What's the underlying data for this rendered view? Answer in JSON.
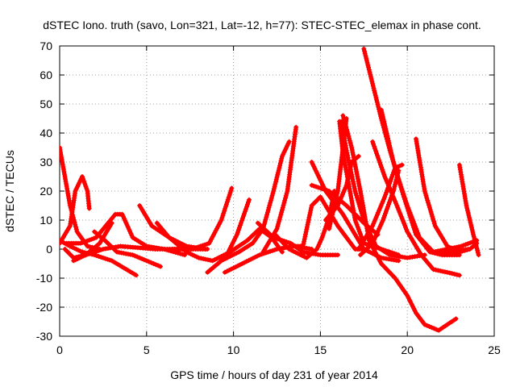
{
  "chart_data": {
    "type": "scatter",
    "title": "dSTEC Iono. truth (savo, Lon=321, Lat=-12, h=77): STEC-STEC_elemax in phase cont.",
    "xlabel": "GPS time / hours of day 231 of year 2014",
    "ylabel": "dSTEC  / TECUs",
    "xlim": [
      0,
      25
    ],
    "ylim": [
      -30,
      70
    ],
    "xticks": [
      0,
      5,
      10,
      15,
      20,
      25
    ],
    "yticks": [
      -30,
      -20,
      -10,
      0,
      10,
      20,
      30,
      40,
      50,
      60,
      70
    ],
    "grid": true,
    "marker": "+",
    "color": "#ff0000",
    "series": [
      {
        "points": [
          [
            0.0,
            35
          ],
          [
            0.3,
            25
          ],
          [
            0.6,
            15
          ],
          [
            1.0,
            6
          ],
          [
            1.6,
            1
          ],
          [
            2.3,
            0
          ]
        ]
      },
      {
        "points": [
          [
            0.0,
            3
          ],
          [
            0.6,
            1
          ],
          [
            1.3,
            -1
          ],
          [
            2.0,
            -2
          ],
          [
            3.0,
            -4
          ],
          [
            4.4,
            -9
          ]
        ]
      },
      {
        "points": [
          [
            0.0,
            2
          ],
          [
            0.6,
            8
          ],
          [
            0.9,
            20
          ],
          [
            1.3,
            25
          ],
          [
            1.6,
            20
          ],
          [
            1.7,
            14
          ]
        ]
      },
      {
        "points": [
          [
            0.3,
            0
          ],
          [
            0.8,
            -3
          ],
          [
            1.5,
            -2
          ],
          [
            2.5,
            0
          ],
          [
            3.5,
            1
          ],
          [
            5.5,
            0
          ],
          [
            8.5,
            0
          ]
        ]
      },
      {
        "points": [
          [
            0.4,
            2
          ],
          [
            1.2,
            2
          ],
          [
            2.1,
            4
          ],
          [
            3.2,
            12
          ],
          [
            3.6,
            12
          ],
          [
            4.2,
            4
          ],
          [
            5.0,
            1
          ],
          [
            6.0,
            0
          ],
          [
            7.2,
            -2
          ]
        ]
      },
      {
        "points": [
          [
            0.8,
            -4
          ],
          [
            1.5,
            -2
          ],
          [
            2.3,
            2
          ],
          [
            2.8,
            7
          ],
          [
            3.0,
            9
          ]
        ]
      },
      {
        "points": [
          [
            2.0,
            6
          ],
          [
            2.6,
            3
          ],
          [
            3.3,
            -1
          ],
          [
            4.2,
            -2
          ],
          [
            5.8,
            -6
          ]
        ]
      },
      {
        "points": [
          [
            4.6,
            15
          ],
          [
            5.3,
            8
          ],
          [
            6.3,
            4
          ],
          [
            7.3,
            1
          ],
          [
            8.4,
            0
          ]
        ]
      },
      {
        "points": [
          [
            5.6,
            9
          ],
          [
            6.3,
            4
          ],
          [
            7.3,
            -1
          ],
          [
            8.0,
            -3
          ],
          [
            8.8,
            -4
          ],
          [
            9.8,
            -1
          ],
          [
            10.8,
            3
          ],
          [
            11.5,
            7
          ],
          [
            12.2,
            4
          ],
          [
            12.8,
            -1
          ]
        ]
      },
      {
        "points": [
          [
            6.5,
            0
          ],
          [
            7.6,
            0
          ],
          [
            8.6,
            2
          ],
          [
            9.3,
            10
          ],
          [
            9.9,
            21
          ]
        ]
      },
      {
        "points": [
          [
            8.5,
            -8
          ],
          [
            9.3,
            -4
          ],
          [
            10.3,
            -1
          ],
          [
            11.1,
            2
          ],
          [
            11.7,
            7
          ],
          [
            12.3,
            20
          ],
          [
            12.8,
            32
          ],
          [
            13.2,
            37
          ]
        ]
      },
      {
        "points": [
          [
            9.7,
            -1
          ],
          [
            10.2,
            5
          ],
          [
            10.9,
            17
          ]
        ]
      },
      {
        "points": [
          [
            9.5,
            -8
          ],
          [
            10.5,
            -5
          ],
          [
            11.5,
            -2
          ],
          [
            12.5,
            0
          ],
          [
            13.5,
            1
          ],
          [
            14.5,
            0
          ]
        ]
      },
      {
        "points": [
          [
            11.7,
            -1
          ],
          [
            12.5,
            7
          ],
          [
            13.1,
            20
          ],
          [
            13.6,
            42
          ]
        ]
      },
      {
        "points": [
          [
            11.4,
            9
          ],
          [
            12.3,
            4
          ],
          [
            13.3,
            2
          ],
          [
            14.0,
            -1
          ],
          [
            15.0,
            -2
          ],
          [
            16.0,
            -2
          ]
        ]
      },
      {
        "points": [
          [
            12.4,
            5
          ],
          [
            13.2,
            0
          ],
          [
            14.2,
            -3
          ],
          [
            14.8,
            0
          ],
          [
            15.1,
            4
          ],
          [
            15.5,
            11
          ],
          [
            15.8,
            20
          ]
        ]
      },
      {
        "points": [
          [
            13.3,
            1
          ],
          [
            14.0,
            1
          ],
          [
            14.5,
            15
          ],
          [
            15.0,
            18
          ],
          [
            16.0,
            8
          ],
          [
            17.0,
            0
          ],
          [
            17.5,
            0
          ]
        ]
      },
      {
        "points": [
          [
            14.5,
            30
          ],
          [
            15.3,
            20
          ],
          [
            16.3,
            12
          ],
          [
            17.5,
            0
          ],
          [
            18.5,
            -3
          ],
          [
            19.5,
            -4
          ]
        ]
      },
      {
        "points": [
          [
            14.5,
            22
          ],
          [
            15.5,
            20
          ],
          [
            16.5,
            15
          ],
          [
            17.5,
            9
          ],
          [
            18.3,
            5
          ]
        ]
      },
      {
        "points": [
          [
            15.3,
            10
          ],
          [
            16.0,
            15
          ],
          [
            16.5,
            22
          ],
          [
            16.8,
            30
          ],
          [
            17.2,
            32
          ]
        ]
      },
      {
        "points": [
          [
            15.5,
            7
          ],
          [
            16.0,
            20
          ],
          [
            16.3,
            35
          ],
          [
            16.5,
            45
          ]
        ]
      },
      {
        "points": [
          [
            16.1,
            44
          ],
          [
            16.3,
            33
          ],
          [
            16.7,
            20
          ],
          [
            17.0,
            10
          ],
          [
            17.5,
            2
          ],
          [
            18.5,
            0
          ],
          [
            19.5,
            -2
          ]
        ]
      },
      {
        "points": [
          [
            16.2,
            44
          ],
          [
            16.5,
            34
          ],
          [
            17.0,
            20
          ],
          [
            17.5,
            10
          ],
          [
            18.2,
            1
          ],
          [
            19.0,
            -2
          ],
          [
            20.0,
            -3
          ],
          [
            21.0,
            -2
          ]
        ]
      },
      {
        "points": [
          [
            16.3,
            46
          ],
          [
            16.8,
            35
          ],
          [
            17.3,
            20
          ],
          [
            17.8,
            3
          ],
          [
            18.5,
            -5
          ],
          [
            19.3,
            -10
          ],
          [
            20.0,
            -16
          ],
          [
            20.5,
            -22
          ],
          [
            21.0,
            -26
          ],
          [
            21.8,
            -28
          ],
          [
            22.3,
            -26
          ],
          [
            22.8,
            -24
          ]
        ]
      },
      {
        "points": [
          [
            17.5,
            69
          ],
          [
            18.0,
            57
          ],
          [
            18.5,
            45
          ],
          [
            19.0,
            34
          ],
          [
            19.5,
            24
          ],
          [
            20.0,
            15
          ],
          [
            20.7,
            4
          ],
          [
            21.5,
            -1
          ],
          [
            22.5,
            -1
          ],
          [
            23.5,
            0
          ]
        ]
      },
      {
        "points": [
          [
            17.2,
            0
          ],
          [
            18.0,
            8
          ],
          [
            18.7,
            18
          ],
          [
            19.3,
            28
          ],
          [
            19.7,
            29
          ]
        ]
      },
      {
        "points": [
          [
            17.3,
            -2
          ],
          [
            18.0,
            2
          ],
          [
            18.6,
            10
          ],
          [
            19.2,
            20
          ],
          [
            19.5,
            27
          ]
        ]
      },
      {
        "points": [
          [
            18.0,
            37
          ],
          [
            18.7,
            25
          ],
          [
            19.4,
            15
          ],
          [
            20.0,
            6
          ],
          [
            20.8,
            -2
          ],
          [
            21.5,
            -7
          ],
          [
            22.3,
            -8
          ],
          [
            23.0,
            -9
          ]
        ]
      },
      {
        "points": [
          [
            18.5,
            48
          ],
          [
            19.2,
            30
          ],
          [
            19.8,
            18
          ],
          [
            20.5,
            5
          ],
          [
            21.3,
            -1
          ],
          [
            22.0,
            -2
          ],
          [
            23.0,
            -2
          ]
        ]
      },
      {
        "points": [
          [
            20.5,
            38
          ],
          [
            21.0,
            20
          ],
          [
            21.6,
            8
          ],
          [
            22.3,
            1
          ],
          [
            23.0,
            -1
          ],
          [
            23.6,
            0
          ],
          [
            24.0,
            2
          ]
        ]
      },
      {
        "points": [
          [
            23.0,
            29
          ],
          [
            23.4,
            15
          ],
          [
            23.8,
            5
          ],
          [
            24.1,
            -2
          ]
        ]
      },
      {
        "points": [
          [
            21.5,
            -1
          ],
          [
            22.3,
            0
          ],
          [
            23.1,
            1
          ],
          [
            24.0,
            3
          ]
        ]
      }
    ]
  }
}
